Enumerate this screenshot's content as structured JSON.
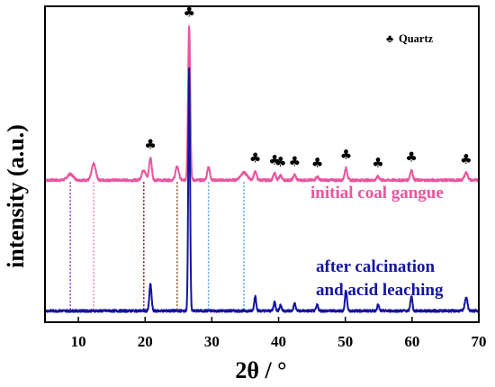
{
  "chart_data": {
    "type": "line",
    "xlabel": "2θ / °",
    "ylabel": "intensity (a.u.)",
    "xlim": [
      5,
      70
    ],
    "xticks": [
      10,
      20,
      30,
      40,
      50,
      60,
      70
    ],
    "yticks": "none",
    "grid": false,
    "legend": {
      "symbol": "♣",
      "label": "Quartz",
      "placement": "top-right"
    },
    "series": [
      {
        "name": "initial coal gangue",
        "color": "#e8559e",
        "baseline": 0.46,
        "peaks": [
          {
            "x": 8.8,
            "h": 0.02,
            "w": 0.45
          },
          {
            "x": 12.3,
            "h": 0.055,
            "w": 0.3
          },
          {
            "x": 19.8,
            "h": 0.035,
            "w": 0.3
          },
          {
            "x": 20.8,
            "h": 0.075,
            "w": 0.2
          },
          {
            "x": 24.8,
            "h": 0.045,
            "w": 0.25
          },
          {
            "x": 26.6,
            "h": 0.52,
            "w": 0.16
          },
          {
            "x": 29.5,
            "h": 0.045,
            "w": 0.2
          },
          {
            "x": 34.8,
            "h": 0.025,
            "w": 0.5
          },
          {
            "x": 36.5,
            "h": 0.03,
            "w": 0.2
          },
          {
            "x": 39.4,
            "h": 0.022,
            "w": 0.2
          },
          {
            "x": 40.3,
            "h": 0.015,
            "w": 0.2
          },
          {
            "x": 42.4,
            "h": 0.018,
            "w": 0.2
          },
          {
            "x": 45.8,
            "h": 0.012,
            "w": 0.2
          },
          {
            "x": 50.1,
            "h": 0.04,
            "w": 0.2
          },
          {
            "x": 54.9,
            "h": 0.012,
            "w": 0.2
          },
          {
            "x": 59.9,
            "h": 0.033,
            "w": 0.2
          },
          {
            "x": 68.1,
            "h": 0.025,
            "w": 0.25
          }
        ]
      },
      {
        "name": "after calcination\nand acid leaching",
        "color": "#1414a0",
        "baseline": 0.02,
        "peaks": [
          {
            "x": 20.8,
            "h": 0.09,
            "w": 0.16
          },
          {
            "x": 26.6,
            "h": 0.82,
            "w": 0.13
          },
          {
            "x": 36.5,
            "h": 0.05,
            "w": 0.15
          },
          {
            "x": 39.4,
            "h": 0.03,
            "w": 0.15
          },
          {
            "x": 40.3,
            "h": 0.02,
            "w": 0.15
          },
          {
            "x": 42.4,
            "h": 0.025,
            "w": 0.15
          },
          {
            "x": 45.8,
            "h": 0.02,
            "w": 0.15
          },
          {
            "x": 50.1,
            "h": 0.07,
            "w": 0.15
          },
          {
            "x": 54.9,
            "h": 0.02,
            "w": 0.15
          },
          {
            "x": 59.9,
            "h": 0.05,
            "w": 0.15
          },
          {
            "x": 68.1,
            "h": 0.045,
            "w": 0.2
          }
        ]
      }
    ],
    "quartz_markers": [
      20.8,
      26.6,
      36.5,
      39.4,
      40.3,
      42.4,
      45.8,
      50.1,
      54.9,
      59.9,
      68.1
    ],
    "reference_lines": [
      {
        "x": 8.8,
        "color": "#a040d0"
      },
      {
        "x": 12.3,
        "color": "#f08cc0"
      },
      {
        "x": 19.8,
        "color": "#8b1a1a"
      },
      {
        "x": 24.8,
        "color": "#a0522d"
      },
      {
        "x": 29.5,
        "color": "#5aa8f0"
      },
      {
        "x": 34.8,
        "color": "#5aa8f0"
      }
    ]
  }
}
